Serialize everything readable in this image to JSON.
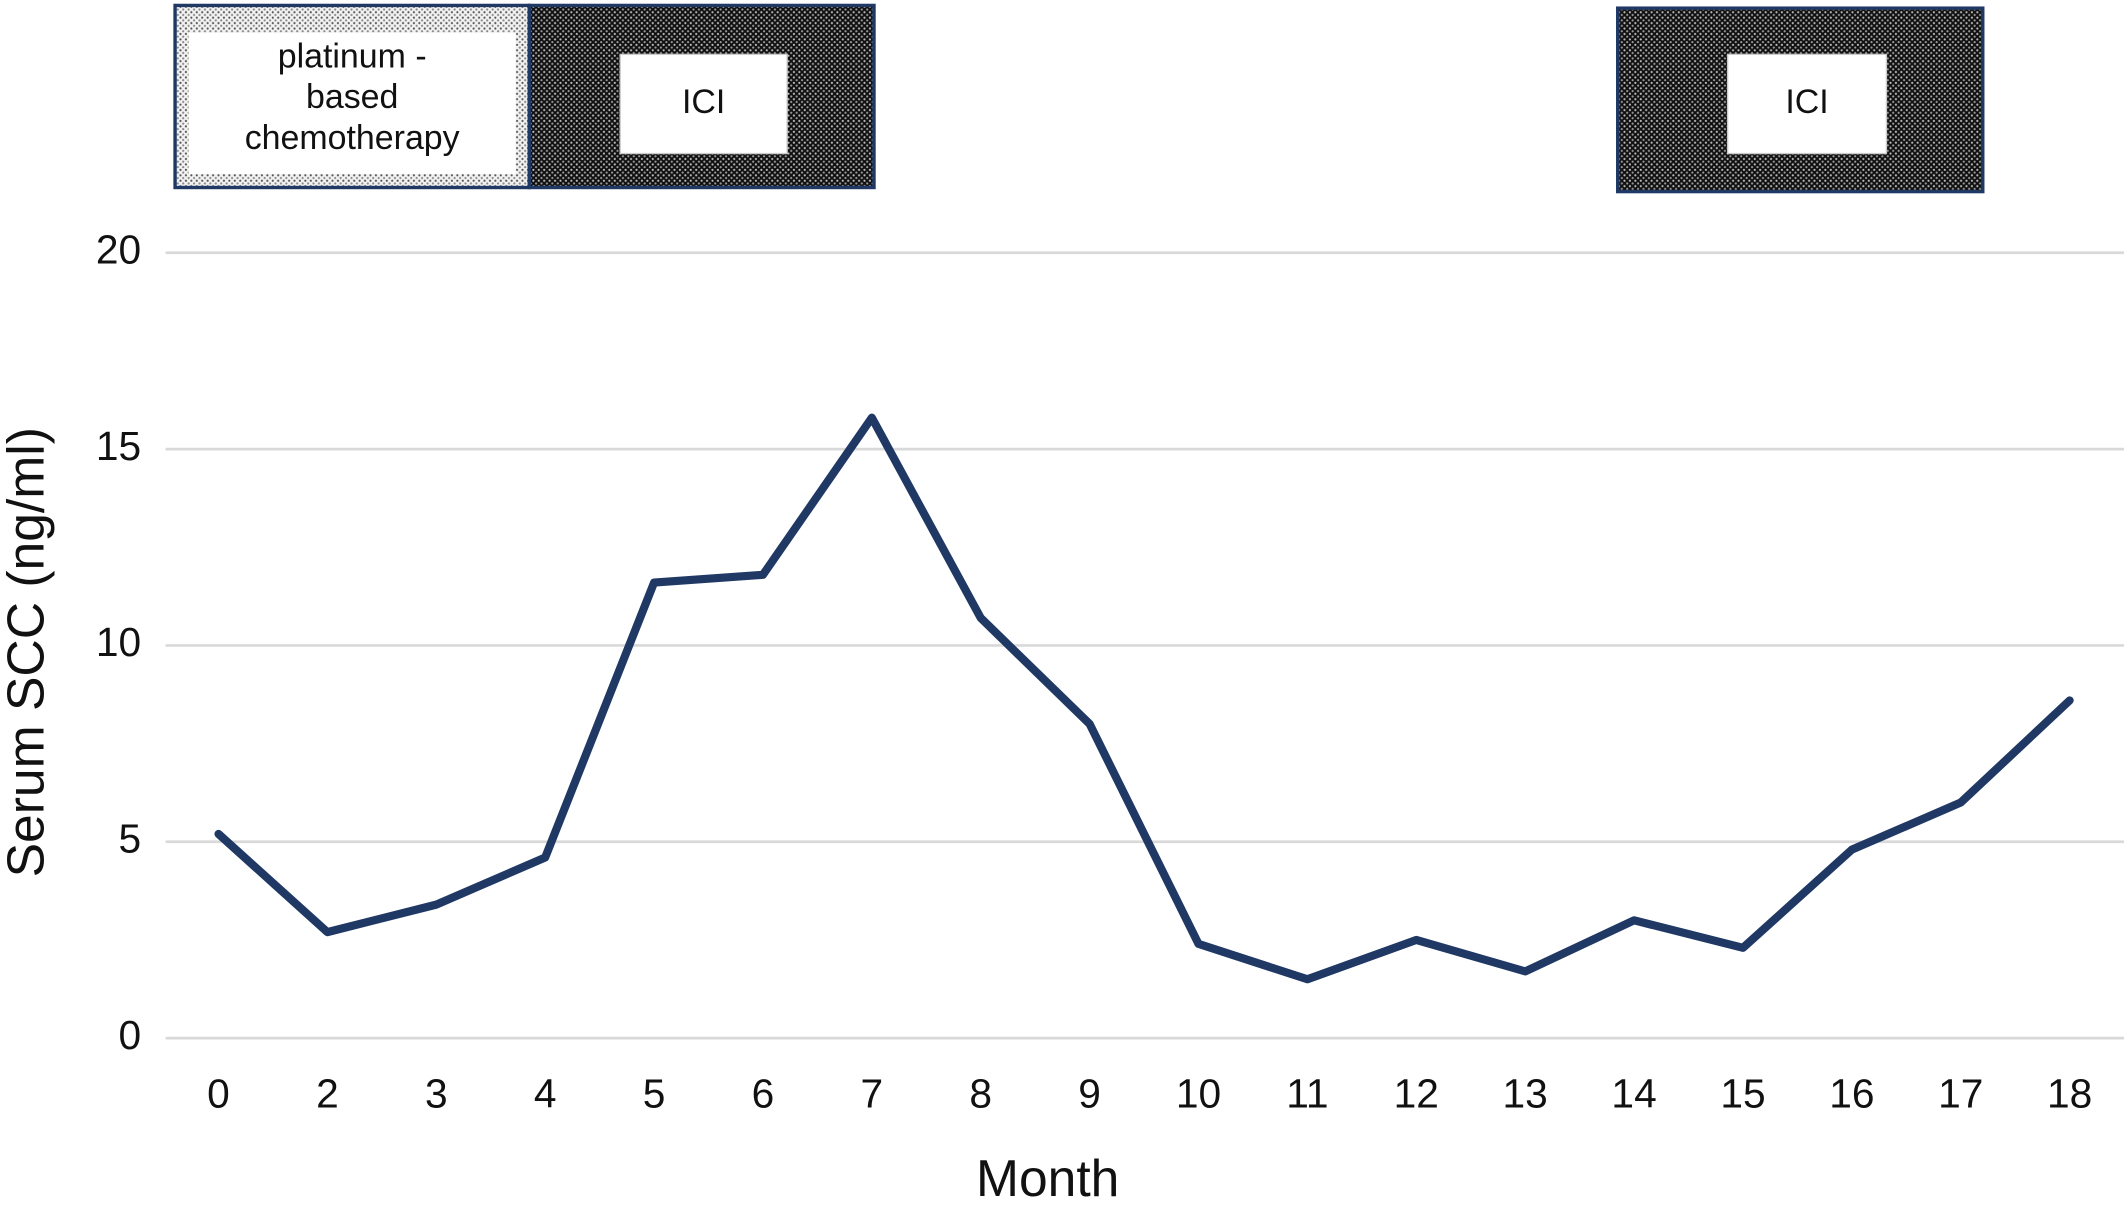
{
  "chart_data": {
    "type": "line",
    "x_label": "Month",
    "y_label": "Serum SCC (ng/ml)",
    "categories": [
      "0",
      "2",
      "3",
      "4",
      "5",
      "6",
      "7",
      "8",
      "9",
      "10",
      "11",
      "12",
      "13",
      "14",
      "15",
      "16",
      "17",
      "18"
    ],
    "series": [
      {
        "color": "#1f3864",
        "values": [
          5.2,
          2.7,
          3.4,
          4.6,
          11.6,
          11.8,
          15.8,
          10.7,
          8.0,
          2.4,
          1.5,
          2.5,
          1.7,
          3.0,
          2.3,
          4.8,
          6.0,
          8.6
        ]
      }
    ],
    "ylim": [
      0,
      20
    ],
    "yticks": [
      0,
      5,
      10,
      15,
      20
    ],
    "grid": true,
    "treatments": [
      {
        "lines": [
          "platinum -",
          "based",
          "chemotherapy"
        ],
        "style": "light"
      },
      {
        "lines": [
          "ICI"
        ],
        "style": "dark"
      },
      {
        "lines": [
          "ICI"
        ],
        "style": "dark"
      }
    ]
  }
}
